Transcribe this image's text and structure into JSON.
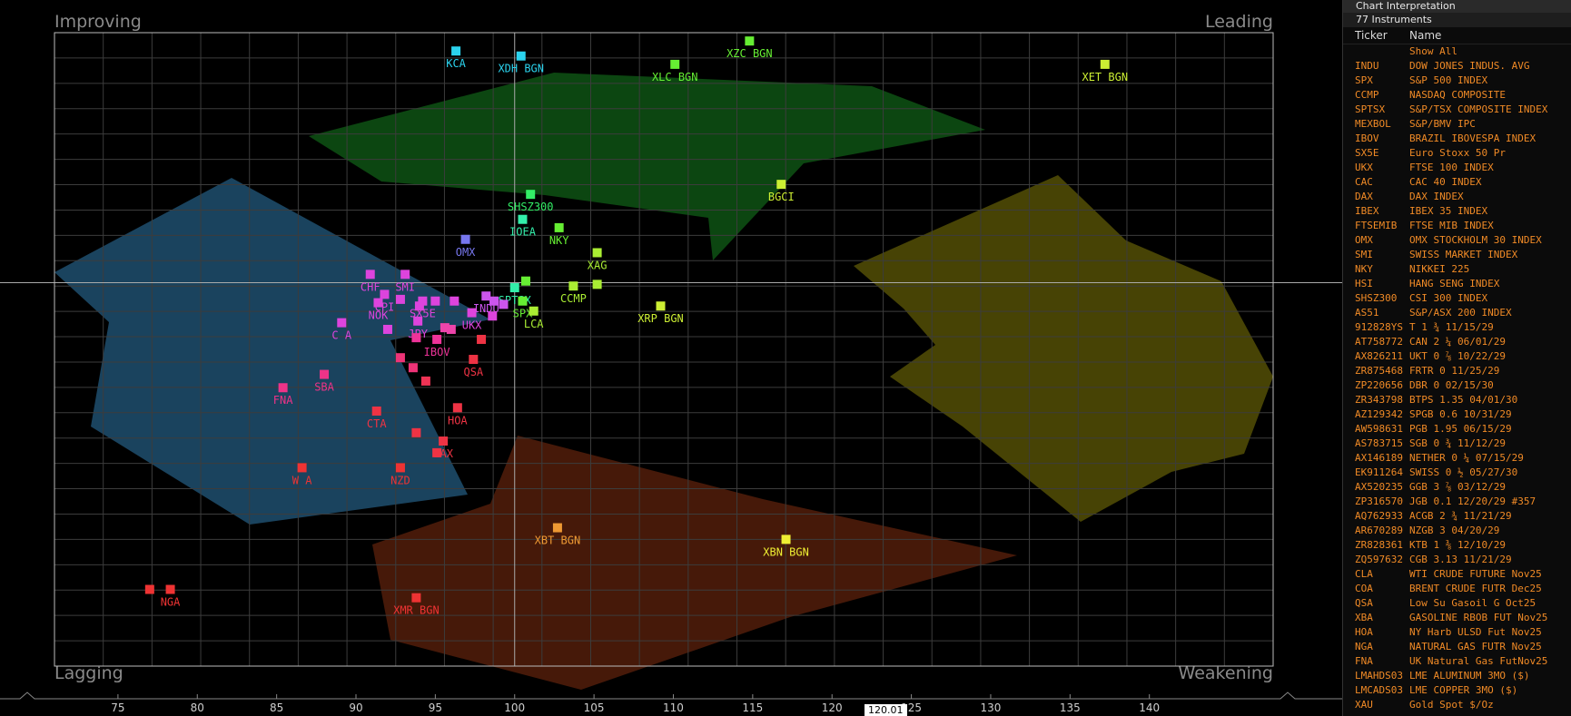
{
  "quadrants": {
    "top_left": "Improving",
    "top_right": "Leading",
    "bottom_left": "Lagging",
    "bottom_right": "Weakening"
  },
  "cursor_value": "120.01",
  "colors": {
    "improving": "#1e4f6e",
    "leading": "#0d4a12",
    "weakening": "#4f4a06",
    "lagging": "#4a1a0a",
    "grid": "#4a4a4a",
    "panel_text": "#f08a26"
  },
  "chart_data": {
    "type": "scatter",
    "title": "",
    "xlabel": "",
    "ylabel": "",
    "xlim": [
      71,
      147.8
    ],
    "ylim": [
      77,
      115
    ],
    "x_center": 100,
    "y_center": 100,
    "xticks": [
      75,
      80,
      85,
      90,
      95,
      100,
      105,
      110,
      115,
      120,
      125,
      130,
      135,
      140
    ],
    "grid": true,
    "points": [
      {
        "label": "KCA",
        "x": 96.3,
        "y": 113.9,
        "color": "#2bd3ee"
      },
      {
        "label": "XDH BGN",
        "x": 100.4,
        "y": 113.6,
        "color": "#2bd3ee"
      },
      {
        "label": "XZC BGN",
        "x": 114.8,
        "y": 114.5,
        "color": "#66ee33"
      },
      {
        "label": "XLC BGN",
        "x": 110.1,
        "y": 113.1,
        "color": "#66ee33"
      },
      {
        "label": "XET BGN",
        "x": 137.2,
        "y": 113.1,
        "color": "#ccee33"
      },
      {
        "label": "BGCI",
        "x": 116.8,
        "y": 105.9,
        "color": "#ccee33"
      },
      {
        "label": "SHSZ300",
        "x": 101.0,
        "y": 105.3,
        "color": "#33ee66"
      },
      {
        "label": "IOEA",
        "x": 100.5,
        "y": 103.8,
        "color": "#33eeaa"
      },
      {
        "label": "NKY",
        "x": 102.8,
        "y": 103.3,
        "color": "#66ee33"
      },
      {
        "label": "OMX",
        "x": 96.9,
        "y": 102.6,
        "color": "#7777ee"
      },
      {
        "label": "XAG",
        "x": 105.2,
        "y": 101.8,
        "color": "#aaee33"
      },
      {
        "label": "CHF",
        "x": 90.9,
        "y": 100.5,
        "color": "#dd44dd"
      },
      {
        "label": "SMI",
        "x": 93.1,
        "y": 100.5,
        "color": "#dd44dd"
      },
      {
        "label": "SPTSX",
        "x": 100.0,
        "y": 99.7,
        "color": "#33eeaa"
      },
      {
        "label": "",
        "x": 100.7,
        "y": 100.1,
        "color": "#66ee33"
      },
      {
        "label": "CCMP",
        "x": 103.7,
        "y": 99.8,
        "color": "#aaee33"
      },
      {
        "label": "",
        "x": 105.2,
        "y": 99.9,
        "color": "#aaee33"
      },
      {
        "label": "CPI",
        "x": 91.8,
        "y": 99.3,
        "color": "#dd44dd"
      },
      {
        "label": "",
        "x": 92.8,
        "y": 99.0,
        "color": "#dd44dd"
      },
      {
        "label": "NOK",
        "x": 91.4,
        "y": 98.8,
        "color": "#dd44dd"
      },
      {
        "label": "SX5E",
        "x": 94.2,
        "y": 98.9,
        "color": "#dd44dd"
      },
      {
        "label": "",
        "x": 95.0,
        "y": 98.9,
        "color": "#dd44dd"
      },
      {
        "label": "",
        "x": 96.2,
        "y": 98.9,
        "color": "#dd44dd"
      },
      {
        "label": "",
        "x": 94.0,
        "y": 98.6,
        "color": "#dd44dd"
      },
      {
        "label": "INDU",
        "x": 98.2,
        "y": 99.2,
        "color": "#cc55ee"
      },
      {
        "label": "",
        "x": 98.7,
        "y": 98.9,
        "color": "#cc55ee"
      },
      {
        "label": "",
        "x": 99.3,
        "y": 98.7,
        "color": "#cc55ee"
      },
      {
        "label": "SPX",
        "x": 100.5,
        "y": 98.9,
        "color": "#66ee33"
      },
      {
        "label": "LCA",
        "x": 101.2,
        "y": 98.3,
        "color": "#aaee33"
      },
      {
        "label": "XRP BGN",
        "x": 109.2,
        "y": 98.6,
        "color": "#ccee33"
      },
      {
        "label": "UKX",
        "x": 97.3,
        "y": 98.2,
        "color": "#dd44dd"
      },
      {
        "label": "",
        "x": 98.6,
        "y": 98.0,
        "color": "#dd44dd"
      },
      {
        "label": "C A",
        "x": 89.1,
        "y": 97.6,
        "color": "#dd44dd"
      },
      {
        "label": "",
        "x": 92.0,
        "y": 97.2,
        "color": "#dd44dd"
      },
      {
        "label": "JPY",
        "x": 93.9,
        "y": 97.7,
        "color": "#dd44dd"
      },
      {
        "label": "",
        "x": 95.6,
        "y": 97.3,
        "color": "#ee44aa"
      },
      {
        "label": "",
        "x": 96.0,
        "y": 97.2,
        "color": "#ee44aa"
      },
      {
        "label": "IBOV",
        "x": 95.1,
        "y": 96.6,
        "color": "#ee3399"
      },
      {
        "label": "",
        "x": 93.8,
        "y": 96.7,
        "color": "#ee3399"
      },
      {
        "label": "",
        "x": 97.9,
        "y": 96.6,
        "color": "#ee3344"
      },
      {
        "label": "QSA",
        "x": 97.4,
        "y": 95.4,
        "color": "#ee3344"
      },
      {
        "label": "",
        "x": 92.8,
        "y": 95.5,
        "color": "#ee3377"
      },
      {
        "label": "",
        "x": 93.6,
        "y": 94.9,
        "color": "#ee3377"
      },
      {
        "label": "",
        "x": 94.4,
        "y": 94.1,
        "color": "#ee3355"
      },
      {
        "label": "SBA",
        "x": 88.0,
        "y": 94.5,
        "color": "#ee3388"
      },
      {
        "label": "FNA",
        "x": 85.4,
        "y": 93.7,
        "color": "#ee3388"
      },
      {
        "label": "CTA",
        "x": 91.3,
        "y": 92.3,
        "color": "#ee3344"
      },
      {
        "label": "HOA",
        "x": 96.4,
        "y": 92.5,
        "color": "#ee3344"
      },
      {
        "label": "",
        "x": 93.8,
        "y": 91.0,
        "color": "#ee3344"
      },
      {
        "label": "ZAX",
        "x": 95.5,
        "y": 90.5,
        "color": "#ee3344"
      },
      {
        "label": "",
        "x": 95.1,
        "y": 89.8,
        "color": "#ee3344"
      },
      {
        "label": "W A",
        "x": 86.6,
        "y": 88.9,
        "color": "#ee3333"
      },
      {
        "label": "NZD",
        "x": 92.8,
        "y": 88.9,
        "color": "#ee3333"
      },
      {
        "label": "XBT BGN",
        "x": 102.7,
        "y": 85.3,
        "color": "#ee9933"
      },
      {
        "label": "XBN BGN",
        "x": 117.1,
        "y": 84.6,
        "color": "#eeee33"
      },
      {
        "label": "",
        "x": 77.0,
        "y": 81.6,
        "color": "#ee3333"
      },
      {
        "label": "NGA",
        "x": 78.3,
        "y": 81.6,
        "color": "#ee3333"
      },
      {
        "label": "XMR BGN",
        "x": 93.8,
        "y": 81.1,
        "color": "#ee3333"
      }
    ]
  },
  "panel": {
    "title": "Chart Interpretation",
    "count": "77 Instruments",
    "col_ticker": "Ticker",
    "col_name": "Name",
    "rows": [
      {
        "ticker": "",
        "name": "Show All"
      },
      {
        "ticker": "INDU",
        "name": "DOW JONES INDUS. AVG"
      },
      {
        "ticker": "SPX",
        "name": "S&P 500 INDEX"
      },
      {
        "ticker": "CCMP",
        "name": "NASDAQ COMPOSITE"
      },
      {
        "ticker": "SPTSX",
        "name": "S&P/TSX COMPOSITE INDEX"
      },
      {
        "ticker": "MEXBOL",
        "name": "S&P/BMV IPC"
      },
      {
        "ticker": "IBOV",
        "name": "BRAZIL IBOVESPA INDEX"
      },
      {
        "ticker": "SX5E",
        "name": "Euro Stoxx 50 Pr"
      },
      {
        "ticker": "UKX",
        "name": "FTSE 100 INDEX"
      },
      {
        "ticker": "CAC",
        "name": "CAC 40 INDEX"
      },
      {
        "ticker": "DAX",
        "name": "DAX INDEX"
      },
      {
        "ticker": "IBEX",
        "name": "IBEX 35 INDEX"
      },
      {
        "ticker": "FTSEMIB",
        "name": "FTSE MIB INDEX"
      },
      {
        "ticker": "OMX",
        "name": "OMX STOCKHOLM 30 INDEX"
      },
      {
        "ticker": "SMI",
        "name": "SWISS MARKET INDEX"
      },
      {
        "ticker": "NKY",
        "name": "NIKKEI 225"
      },
      {
        "ticker": "HSI",
        "name": "HANG SENG INDEX"
      },
      {
        "ticker": "SHSZ300",
        "name": "CSI 300 INDEX"
      },
      {
        "ticker": "AS51",
        "name": "S&P/ASX 200 INDEX"
      },
      {
        "ticker": "912828YS",
        "name": "T 1 ¾ 11/15/29"
      },
      {
        "ticker": "AT758772",
        "name": "CAN 2 ¼ 06/01/29"
      },
      {
        "ticker": "AX826211",
        "name": "UKT 0 ⅞ 10/22/29"
      },
      {
        "ticker": "ZR875468",
        "name": "FRTR 0 11/25/29"
      },
      {
        "ticker": "ZP220656",
        "name": "DBR 0 02/15/30"
      },
      {
        "ticker": "ZR343798",
        "name": "BTPS 1.35 04/01/30"
      },
      {
        "ticker": "AZ129342",
        "name": "SPGB 0.6 10/31/29"
      },
      {
        "ticker": "AW598631",
        "name": "PGB 1.95 06/15/29"
      },
      {
        "ticker": "AS783715",
        "name": "SGB 0 ¾ 11/12/29"
      },
      {
        "ticker": "AX146189",
        "name": "NETHER 0 ¼ 07/15/29"
      },
      {
        "ticker": "EK911264",
        "name": "SWISS 0 ½ 05/27/30"
      },
      {
        "ticker": "AX520235",
        "name": "GGB 3 ⅞ 03/12/29"
      },
      {
        "ticker": "ZP316570",
        "name": "JGB 0.1 12/20/29 #357"
      },
      {
        "ticker": "AQ762933",
        "name": "ACGB 2 ¾ 11/21/29"
      },
      {
        "ticker": "AR670289",
        "name": "NZGB 3 04/20/29"
      },
      {
        "ticker": "ZR828361",
        "name": "KTB 1 ⅜ 12/10/29"
      },
      {
        "ticker": "ZQ597632",
        "name": "CGB 3.13 11/21/29"
      },
      {
        "ticker": "CLA",
        "name": "WTI CRUDE FUTURE Nov25"
      },
      {
        "ticker": "COA",
        "name": "BRENT CRUDE FUTR Dec25"
      },
      {
        "ticker": "QSA",
        "name": "Low Su Gasoil G Oct25"
      },
      {
        "ticker": "XBA",
        "name": "GASOLINE RBOB FUT Nov25"
      },
      {
        "ticker": "HOA",
        "name": "NY Harb ULSD Fut Nov25"
      },
      {
        "ticker": "NGA",
        "name": "NATURAL GAS FUTR Nov25"
      },
      {
        "ticker": "FNA",
        "name": "UK Natural Gas FutNov25"
      },
      {
        "ticker": "LMAHDS03",
        "name": "LME ALUMINUM 3MO ($)"
      },
      {
        "ticker": "LMCADS03",
        "name": "LME COPPER 3MO ($)"
      },
      {
        "ticker": "XAU",
        "name": "Gold Spot $/Oz"
      }
    ]
  }
}
